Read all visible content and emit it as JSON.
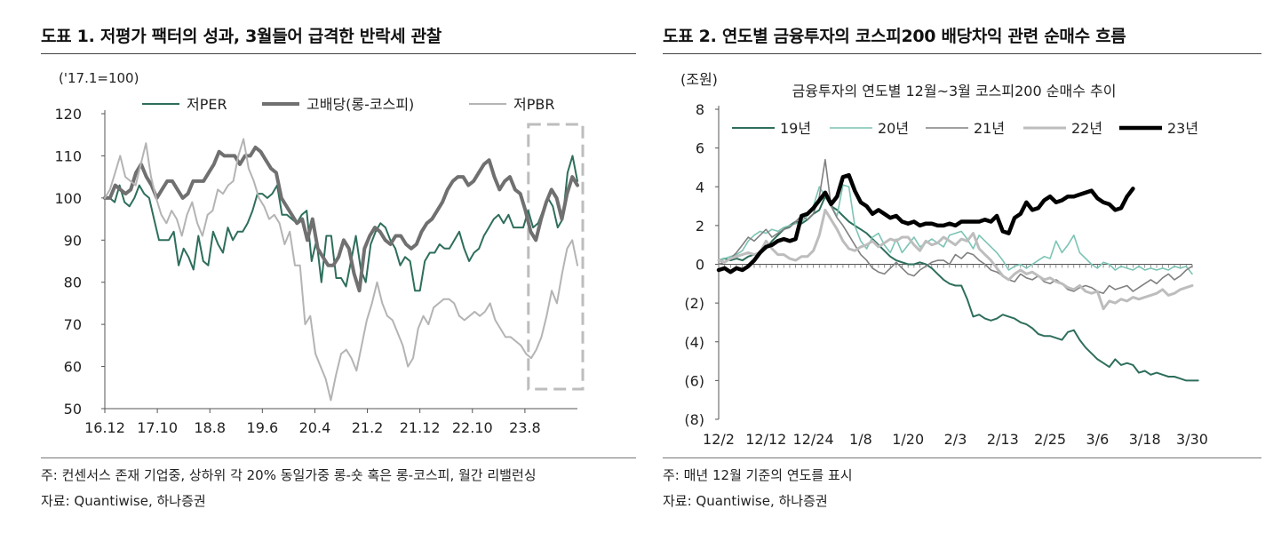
{
  "left": {
    "title": "도표 1. 저평가 팩터의 성과, 3월들어 급격한 반락세 관찰",
    "unit": "('17.1=100)",
    "footnote": "주: 컨센서스 존재 기업중, 상하위 각 20% 동일가중 롱-숏 혹은 롱-코스피, 월간 리밸런싱",
    "source": "자료: Quantiwise, 하나증권"
  },
  "right": {
    "title": "도표 2. 연도별 금융투자의 코스피200 배당차익 관련 순매수 흐름",
    "unit": "(조원)",
    "footnote": "주: 매년 12월 기준의 연도를 표시",
    "source": "자료: Quantiwise, 하나증권"
  },
  "chart_data": [
    {
      "type": "line",
      "title": "",
      "ylim": [
        50,
        120
      ],
      "y_ticks": [
        "50",
        "60",
        "70",
        "80",
        "90",
        "100",
        "110",
        "120"
      ],
      "x_tick_labels": [
        "16.12",
        "17.10",
        "18.8",
        "19.6",
        "20.4",
        "21.2",
        "21.12",
        "22.10",
        "23.8"
      ],
      "x_range": [
        0,
        90
      ],
      "x_tick_positions": [
        0,
        10,
        20,
        30,
        40,
        50,
        60,
        70,
        80
      ],
      "highlight_range": [
        81,
        90
      ],
      "legend_position": "top-center",
      "series": [
        {
          "name": "저PER",
          "color": "#2e6e5c",
          "width": 2,
          "values": [
            100,
            100,
            99,
            103,
            99,
            98,
            100,
            103,
            101,
            100,
            95,
            90,
            90,
            90,
            92,
            84,
            88,
            86,
            83,
            91,
            85,
            84,
            92,
            89,
            87,
            93,
            90,
            92,
            92,
            94,
            97,
            101,
            101,
            100,
            101,
            103,
            96,
            96,
            95,
            94,
            96,
            97,
            85,
            90,
            80,
            91,
            91,
            81,
            81,
            79,
            85,
            91,
            83,
            80,
            89,
            92,
            94,
            93,
            90,
            88,
            84,
            86,
            85,
            78,
            78,
            85,
            87,
            87,
            89,
            88,
            88,
            90,
            92,
            88,
            85,
            87,
            88,
            91,
            93,
            95,
            96,
            94,
            96,
            93,
            93,
            93,
            97,
            93,
            94,
            97,
            100,
            98,
            93,
            95,
            106,
            110,
            104
          ]
        },
        {
          "name": "고배당(롱-코스피)",
          "color": "#707070",
          "width": 4,
          "values": [
            100,
            100,
            103,
            102,
            101,
            102,
            106,
            108,
            105,
            103,
            100,
            102,
            104,
            104,
            102,
            100,
            101,
            104,
            104,
            104,
            106,
            108,
            111,
            110,
            110,
            110,
            108,
            110,
            110,
            112,
            111,
            109,
            107,
            106,
            100,
            98,
            96,
            94,
            95,
            90,
            95,
            88,
            86,
            84,
            84,
            86,
            90,
            88,
            82,
            78,
            88,
            91,
            93,
            92,
            90,
            89,
            91,
            91,
            89,
            88,
            89,
            92,
            94,
            95,
            97,
            99,
            102,
            104,
            105,
            105,
            103,
            104,
            106,
            108,
            109,
            105,
            102,
            104,
            105,
            102,
            101,
            97,
            92,
            90,
            95,
            99,
            102,
            100,
            95,
            101,
            105,
            103
          ]
        },
        {
          "name": "저PBR",
          "color": "#b4b4b4",
          "width": 2,
          "values": [
            100,
            102,
            106,
            110,
            105,
            104,
            103,
            108,
            113,
            105,
            100,
            96,
            94,
            97,
            95,
            91,
            96,
            99,
            94,
            91,
            96,
            97,
            102,
            101,
            103,
            104,
            110,
            114,
            107,
            104,
            100,
            98,
            95,
            96,
            94,
            89,
            92,
            84,
            84,
            70,
            72,
            63,
            60,
            57,
            52,
            58,
            63,
            64,
            62,
            59,
            65,
            71,
            75,
            80,
            75,
            72,
            71,
            68,
            65,
            60,
            62,
            69,
            72,
            70,
            74,
            75,
            76,
            76,
            75,
            72,
            71,
            72,
            73,
            72,
            73,
            75,
            71,
            69,
            67,
            67,
            66,
            65,
            63,
            62,
            64,
            67,
            72,
            78,
            75,
            82,
            88,
            90,
            84
          ]
        }
      ]
    },
    {
      "type": "line",
      "title": "금융투자의 연도별 12월~3월 코스피200 순매수 추이",
      "ylim": [
        -8,
        8
      ],
      "y_ticks": [
        "(8)",
        "(6)",
        "(4)",
        "(2)",
        "0",
        "2",
        "4",
        "6",
        "8"
      ],
      "x_tick_labels": [
        "12/2",
        "12/12",
        "12/24",
        "1/8",
        "1/20",
        "2/3",
        "2/13",
        "2/25",
        "3/6",
        "3/18",
        "3/30"
      ],
      "x_range": [
        0,
        80
      ],
      "x_tick_positions": [
        0,
        8,
        16,
        24,
        32,
        40,
        48,
        56,
        64,
        72,
        80
      ],
      "legend_position": "top",
      "series": [
        {
          "name": "19년",
          "color": "#2e6e5c",
          "width": 2,
          "values": [
            0.2,
            0.3,
            0.2,
            0.3,
            0.2,
            0.4,
            0.5,
            0.6,
            0.8,
            1.2,
            1.5,
            1.8,
            2.0,
            2.2,
            2.1,
            2.3,
            2.6,
            2.8,
            3.5,
            3.0,
            2.8,
            2.5,
            2.2,
            2.0,
            1.8,
            1.6,
            1.3,
            1.0,
            0.7,
            0.4,
            0.2,
            0.1,
            0.0,
            0.0,
            0.1,
            0.0,
            -0.2,
            -0.5,
            -0.8,
            -1.0,
            -1.1,
            -1.1,
            -1.8,
            -2.7,
            -2.6,
            -2.8,
            -2.9,
            -2.8,
            -2.6,
            -2.7,
            -2.8,
            -3.0,
            -3.1,
            -3.3,
            -3.6,
            -3.7,
            -3.7,
            -3.8,
            -3.9,
            -3.5,
            -3.4,
            -3.9,
            -4.3,
            -4.6,
            -4.9,
            -5.1,
            -5.3,
            -4.9,
            -5.2,
            -5.1,
            -5.2,
            -5.6,
            -5.5,
            -5.7,
            -5.6,
            -5.7,
            -5.8,
            -5.8,
            -5.9,
            -6.0,
            -6.0,
            -6.0
          ]
        },
        {
          "name": "20년",
          "color": "#7cc4b4",
          "width": 1.6,
          "values": [
            0.2,
            0.3,
            0.4,
            0.5,
            0.7,
            1.2,
            1.5,
            1.7,
            1.6,
            1.8,
            1.7,
            1.9,
            2.0,
            2.1,
            2.2,
            2.5,
            3.0,
            4.0,
            3.5,
            3.0,
            2.5,
            4.1,
            4.0,
            2.0,
            1.2,
            0.8,
            1.4,
            1.6,
            1.0,
            0.6,
            1.3,
            0.6,
            1.0,
            1.4,
            0.9,
            1.1,
            1.3,
            1.1,
            0.9,
            1.5,
            1.6,
            1.7,
            1.3,
            0.8,
            1.5,
            1.2,
            0.9,
            0.6,
            0.2,
            -0.3,
            -0.1,
            0.0,
            -0.2,
            0.0,
            0.2,
            0.4,
            0.3,
            1.2,
            0.6,
            1.0,
            1.5,
            0.6,
            0.3,
            0.0,
            -0.2,
            0.1,
            0.0,
            -0.3,
            -0.1,
            -0.2,
            -0.3,
            -0.1,
            -0.3,
            -0.2,
            -0.3,
            -0.2,
            -0.3,
            -0.1,
            -0.2,
            -0.1,
            -0.5
          ]
        },
        {
          "name": "21년",
          "color": "#808080",
          "width": 1.6,
          "values": [
            0.0,
            0.1,
            0.3,
            0.6,
            1.0,
            1.4,
            1.2,
            1.5,
            1.8,
            1.4,
            1.6,
            1.8,
            1.9,
            2.2,
            2.5,
            2.3,
            2.6,
            3.5,
            5.4,
            3.0,
            2.4,
            2.0,
            1.5,
            1.0,
            0.5,
            0.2,
            -0.2,
            -0.4,
            -0.5,
            -0.2,
            0.1,
            -0.2,
            -0.5,
            -0.6,
            -0.3,
            -0.1,
            0.1,
            0.2,
            0.2,
            0.0,
            0.5,
            0.3,
            0.6,
            0.5,
            0.2,
            0.0,
            -0.3,
            -0.4,
            -0.6,
            -0.8,
            -0.9,
            -0.5,
            -0.7,
            -0.8,
            -0.6,
            -0.9,
            -1.0,
            -0.8,
            -1.0,
            -1.3,
            -1.4,
            -1.2,
            -1.1,
            -1.2,
            -1.4,
            -1.5,
            -1.1,
            -1.3,
            -1.2,
            -1.1,
            -1.4,
            -1.2,
            -1.0,
            -0.8,
            -1.0,
            -0.7,
            -0.5,
            -0.8,
            -0.6,
            -0.3,
            -0.1
          ]
        },
        {
          "name": "22년",
          "color": "#bdbdbd",
          "width": 3,
          "values": [
            0.2,
            0.1,
            0.3,
            0.4,
            0.5,
            0.6,
            0.5,
            0.6,
            1.2,
            0.8,
            0.5,
            0.5,
            0.3,
            0.2,
            0.4,
            0.4,
            0.7,
            1.5,
            2.8,
            2.3,
            1.8,
            1.2,
            0.8,
            0.7,
            0.9,
            1.0,
            1.2,
            0.9,
            1.1,
            1.3,
            1.2,
            1.4,
            1.4,
            1.0,
            0.7,
            1.2,
            1.0,
            1.1,
            1.4,
            1.2,
            1.0,
            1.3,
            1.2,
            1.6,
            0.8,
            0.5,
            0.2,
            -0.2,
            -0.6,
            -0.8,
            -0.5,
            -0.3,
            -0.5,
            -0.4,
            -0.6,
            -0.8,
            -0.7,
            -0.9,
            -1.0,
            -1.2,
            -1.3,
            -1.1,
            -1.4,
            -1.5,
            -1.4,
            -2.3,
            -1.9,
            -2.0,
            -1.8,
            -1.9,
            -1.7,
            -1.8,
            -1.7,
            -1.6,
            -1.5,
            -1.3,
            -1.6,
            -1.5,
            -1.3,
            -1.2,
            -1.1
          ]
        },
        {
          "name": "23년",
          "color": "#000000",
          "width": 4.5,
          "values": [
            -0.3,
            -0.2,
            -0.4,
            -0.2,
            -0.3,
            -0.1,
            0.2,
            0.6,
            0.9,
            1.0,
            1.2,
            1.3,
            1.2,
            1.3,
            2.5,
            2.6,
            2.9,
            3.3,
            3.7,
            3.1,
            3.5,
            4.5,
            4.6,
            3.8,
            3.2,
            3.0,
            2.6,
            2.8,
            2.6,
            2.4,
            2.5,
            2.2,
            2.1,
            2.2,
            2.0,
            2.1,
            2.1,
            2.0,
            2.0,
            2.1,
            2.0,
            2.2,
            2.2,
            2.2,
            2.2,
            2.3,
            2.2,
            2.5,
            1.7,
            1.6,
            2.4,
            2.6,
            3.2,
            2.8,
            2.9,
            3.3,
            3.5,
            3.2,
            3.3,
            3.5,
            3.5,
            3.6,
            3.7,
            3.8,
            3.4,
            3.2,
            3.1,
            2.8,
            2.9,
            3.5,
            3.9
          ]
        }
      ]
    }
  ]
}
